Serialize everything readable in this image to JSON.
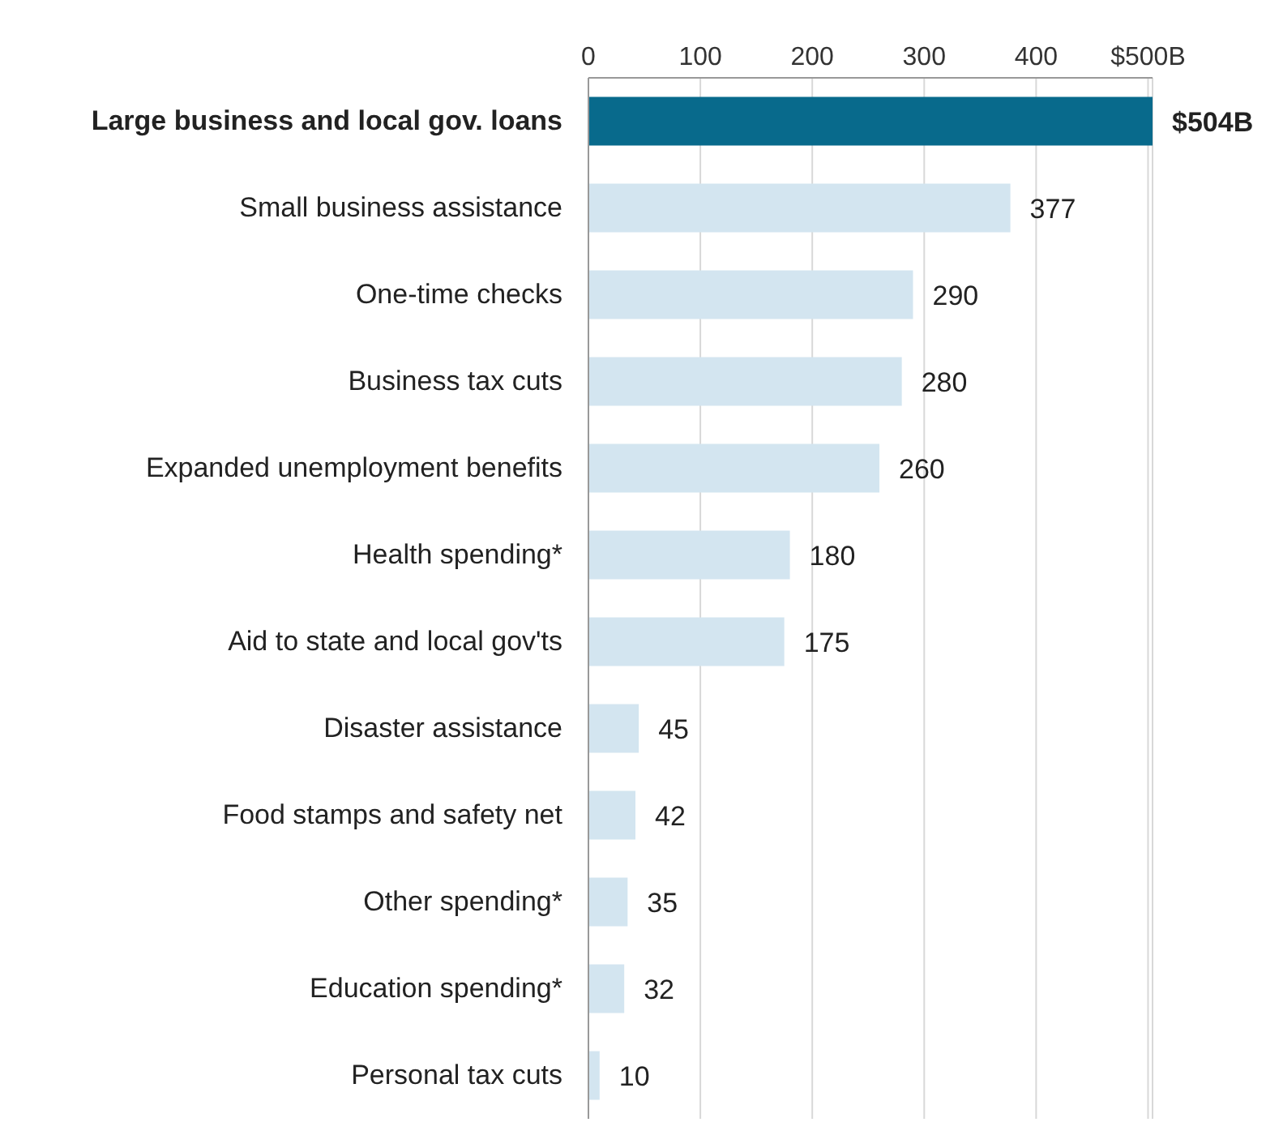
{
  "chart_data": {
    "type": "bar",
    "orientation": "horizontal",
    "categories": [
      "Large business and local gov. loans",
      "Small business assistance",
      "One-time checks",
      "Business tax cuts",
      "Expanded unemployment benefits",
      "Health spending*",
      "Aid to state and local gov'ts",
      "Disaster assistance",
      "Food stamps and safety net",
      "Other spending*",
      "Education spending*",
      "Personal tax cuts"
    ],
    "values": [
      504,
      377,
      290,
      280,
      260,
      180,
      175,
      45,
      42,
      35,
      32,
      10
    ],
    "value_labels": [
      "$504B",
      "377",
      "290",
      "280",
      "260",
      "180",
      "175",
      "45",
      "42",
      "35",
      "32",
      "10"
    ],
    "colors": [
      "#086a8c",
      "#d3e5f0",
      "#d3e5f0",
      "#d3e5f0",
      "#d3e5f0",
      "#d3e5f0",
      "#d3e5f0",
      "#d3e5f0",
      "#d3e5f0",
      "#d3e5f0",
      "#d3e5f0",
      "#d3e5f0"
    ],
    "xlim": [
      0,
      504
    ],
    "xticks": [
      0,
      100,
      200,
      300,
      400,
      {
        "value": 500,
        "label": "$500B"
      }
    ],
    "grid": "x"
  }
}
